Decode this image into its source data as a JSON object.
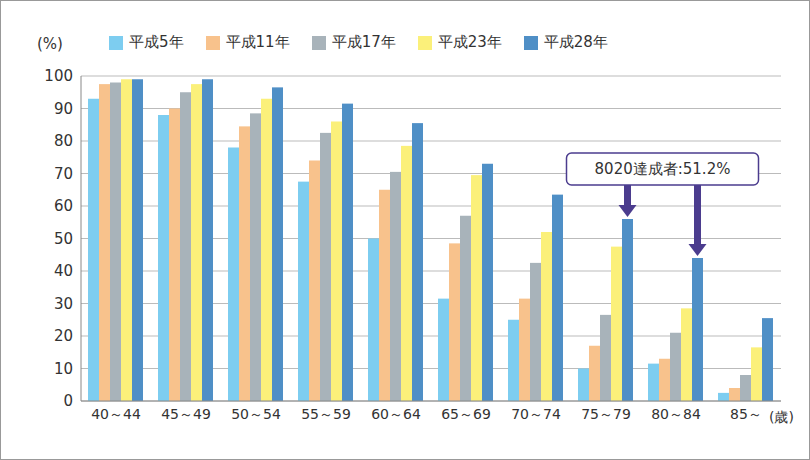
{
  "chart_data": {
    "type": "bar",
    "y_label": "(%)",
    "x_label": "(歳)",
    "categories": [
      "40～44",
      "45～49",
      "50～54",
      "55～59",
      "60～64",
      "65～69",
      "70～74",
      "75～79",
      "80～84",
      "85～"
    ],
    "series": [
      {
        "name": "平成5年",
        "color": "#7dcdf0",
        "values": [
          93,
          88,
          78,
          67.5,
          50,
          31.5,
          25,
          10,
          11.5,
          2.5
        ]
      },
      {
        "name": "平成11年",
        "color": "#f8c28c",
        "values": [
          97.5,
          90,
          84.5,
          74,
          65,
          48.5,
          31.5,
          17,
          13,
          4
        ]
      },
      {
        "name": "平成17年",
        "color": "#a8b3ba",
        "values": [
          98,
          95,
          88.5,
          82.5,
          70.5,
          57,
          42.5,
          26.5,
          21,
          8
        ]
      },
      {
        "name": "平成23年",
        "color": "#fbf07a",
        "values": [
          99,
          97.5,
          93,
          86,
          78.5,
          69.5,
          52,
          47.5,
          28.5,
          16.5
        ]
      },
      {
        "name": "平成28年",
        "color": "#4f8fc6",
        "values": [
          99,
          99,
          96.5,
          91.5,
          85.5,
          73,
          63.5,
          56,
          44,
          25.5
        ]
      }
    ],
    "ylim": [
      0,
      100
    ],
    "yticks": [
      0,
      10,
      20,
      30,
      40,
      50,
      60,
      70,
      80,
      90,
      100
    ],
    "grid": true,
    "annotations": [
      {
        "text": "8020達成者:51.2%",
        "series": "平成28年",
        "categories": [
          "75～79",
          "80～84"
        ]
      }
    ]
  }
}
